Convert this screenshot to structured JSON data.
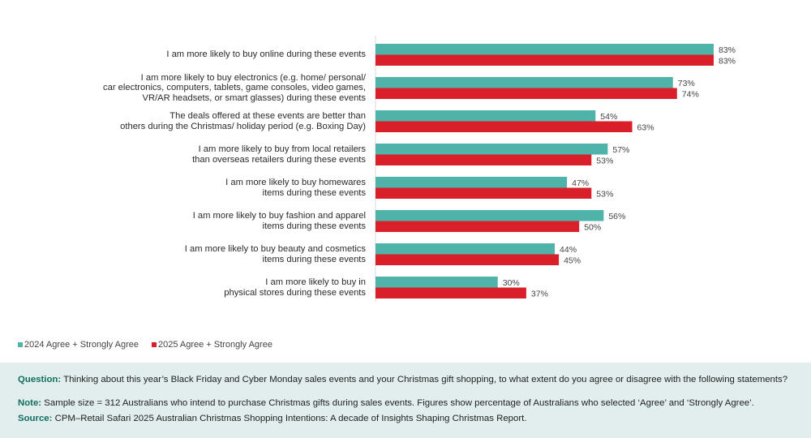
{
  "chart_data": {
    "type": "bar",
    "orientation": "horizontal",
    "categories": [
      "I am more likely to buy online during these events",
      "I am more likely to buy electronics (e.g. home/ personal/\ncar electronics, computers, tablets, game consoles, video games,\nVR/AR headsets, or smart glasses) during these events",
      "The deals offered at these events are better than\nothers during the Christmas/ holiday period (e.g. Boxing Day)",
      "I am more likely to buy from local retailers\nthan overseas retailers during these events",
      "I am more likely to buy homewares\nitems during these events",
      "I am more likely to buy fashion and apparel\nitems during these events",
      "I am more likely to buy beauty and cosmetics\nitems during these events",
      "I am more likely to buy in\nphysical stores during these events"
    ],
    "series": [
      {
        "name": "2024 Agree + Strongly Agree",
        "color": "#4fb3aa",
        "values": [
          83,
          73,
          54,
          57,
          47,
          56,
          44,
          30
        ]
      },
      {
        "name": "2025 Agree + Strongly Agree",
        "color": "#d81f2a",
        "values": [
          83,
          74,
          63,
          53,
          53,
          50,
          45,
          37
        ]
      }
    ],
    "value_suffix": "%",
    "xlim": [
      0,
      100
    ],
    "grid": false,
    "legend": "bottom-left"
  },
  "footer": {
    "question_label": "Question:",
    "question_text": " Thinking about this year’s Black Friday and Cyber Monday sales events and your Christmas gift shopping, to what extent do you agree or disagree with the following statements?",
    "note_label": "Note:",
    "note_text": " Sample size = 312 Australians who intend to purchase Christmas gifts during sales events. Figures show percentage of Australians who selected ‘Agree’ and ‘Strongly Agree’.",
    "source_label": "Source:",
    "source_text": " CPM–Retail Safari 2025 Australian Christmas Shopping Intentions: A decade of Insights Shaping Christmas Report."
  }
}
